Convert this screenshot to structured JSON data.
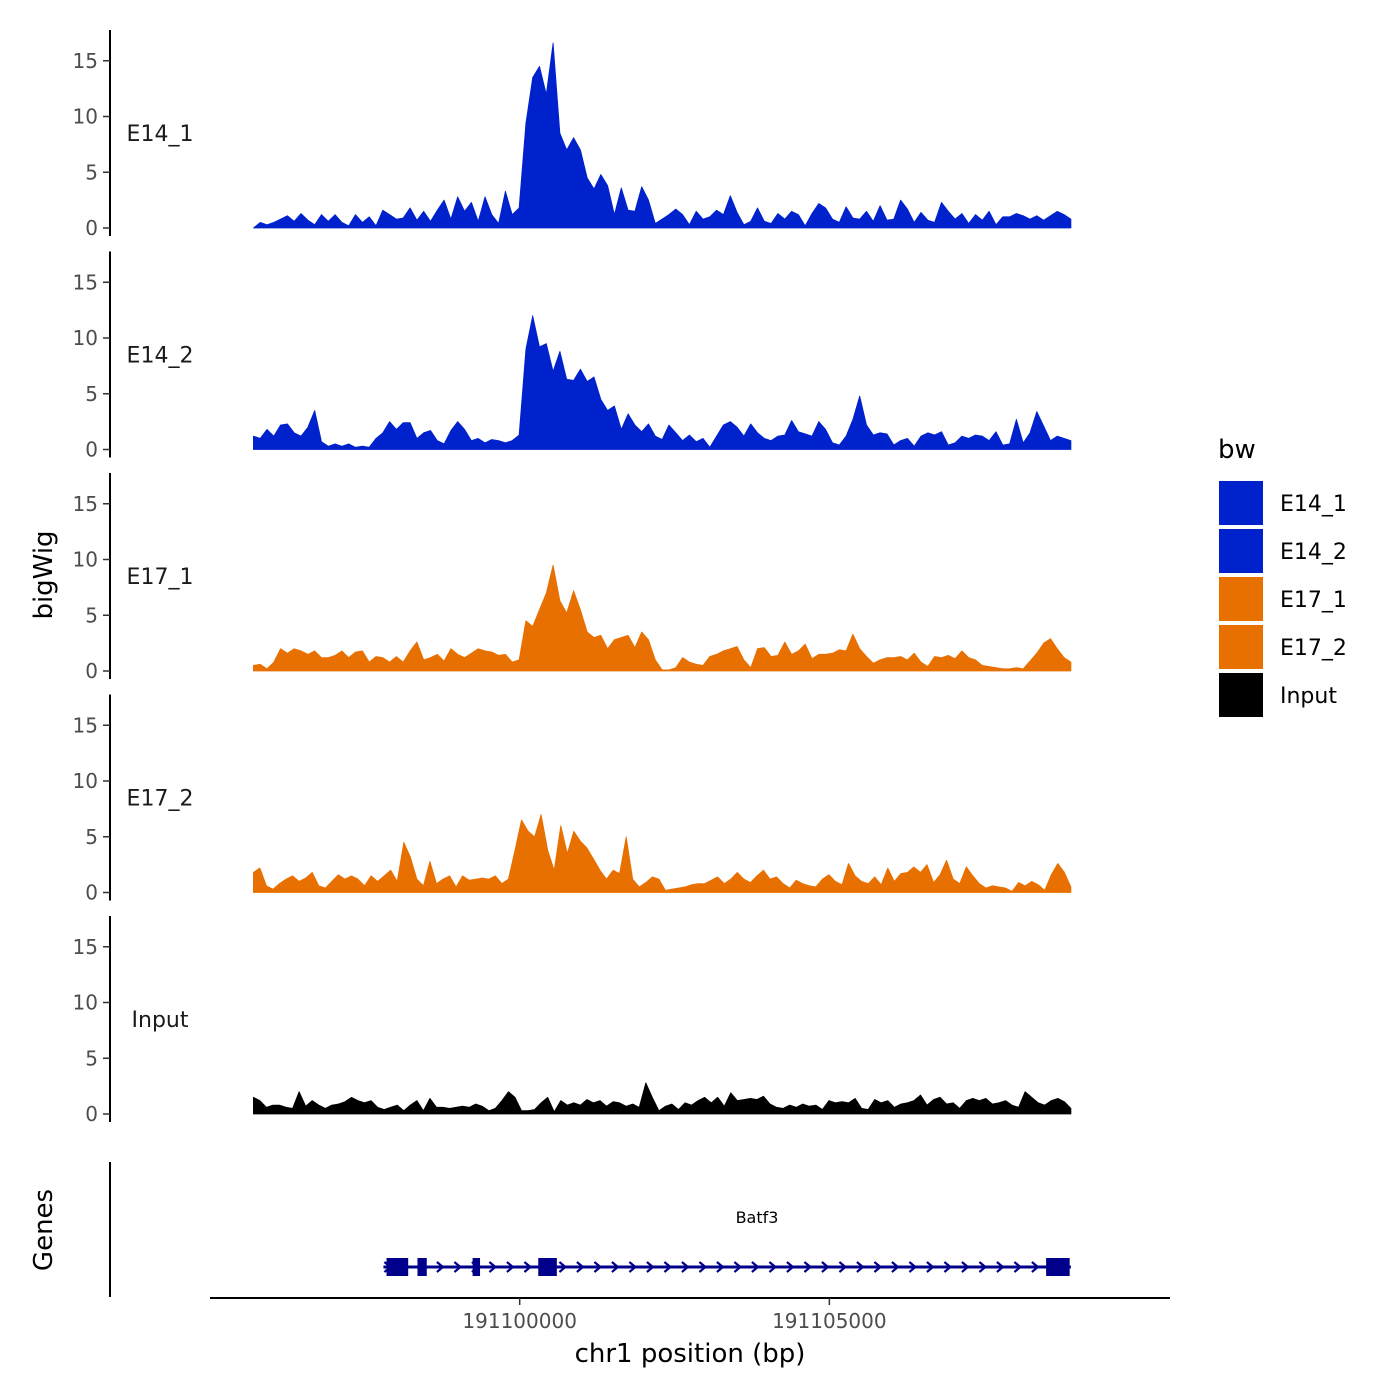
{
  "chart_data": {
    "type": "area",
    "title": "",
    "xlabel": "chr1 position (bp)",
    "ylabel": "bigWig",
    "xlim": [
      191095000,
      191110500
    ],
    "ylim": [
      0,
      17
    ],
    "x_ticks": [
      191100000,
      191105000
    ],
    "x_tick_labels": [
      "191100000",
      "191105000"
    ],
    "y_ticks": [
      0,
      5,
      10,
      15
    ],
    "y_tick_labels": [
      "0",
      "5",
      "10",
      "15"
    ],
    "signal_range": [
      191095700,
      191108900
    ],
    "legend": {
      "title": "bw",
      "placement": "right",
      "entries": [
        {
          "label": "E14_1",
          "color": "#0022cc"
        },
        {
          "label": "E14_2",
          "color": "#0022cc"
        },
        {
          "label": "E17_1",
          "color": "#e87000"
        },
        {
          "label": "E17_2",
          "color": "#e87000"
        },
        {
          "label": "Input",
          "color": "#000000"
        }
      ]
    },
    "series": [
      {
        "name": "E14_1",
        "color": "#0022cc",
        "values": [
          0,
          0.5,
          0.3,
          0.5,
          0.8,
          1.1,
          0.6,
          1.3,
          0.7,
          0.3,
          1.2,
          0.6,
          1.2,
          0.5,
          0.2,
          1.2,
          0.5,
          1.0,
          0.2,
          1.6,
          1.2,
          0.8,
          0.9,
          1.8,
          0.7,
          1.5,
          0.6,
          1.6,
          2.5,
          0.8,
          2.8,
          1.5,
          2.3,
          0.6,
          2.8,
          1.2,
          0.4,
          3.3,
          1.2,
          1.8,
          9.4,
          13.5,
          14.5,
          12.0,
          16.6,
          8.5,
          7.0,
          8.1,
          7.0,
          4.5,
          3.5,
          4.8,
          3.8,
          1.2,
          3.6,
          1.6,
          1.5,
          3.7,
          2.5,
          0.4,
          0.8,
          1.2,
          1.7,
          1.2,
          0.3,
          1.5,
          0.8,
          1.0,
          1.6,
          1.2,
          2.9,
          1.4,
          0.3,
          0.6,
          1.8,
          0.6,
          0.4,
          1.3,
          0.8,
          1.5,
          1.2,
          0.2,
          1.3,
          2.2,
          1.8,
          0.8,
          0.5,
          1.9,
          0.9,
          0.8,
          1.5,
          0.6,
          2.0,
          0.7,
          0.8,
          2.5,
          1.7,
          0.5,
          1.4,
          0.7,
          0.5,
          2.3,
          1.5,
          0.8,
          1.3,
          0.4,
          1.2,
          0.7,
          1.5,
          0.3,
          1.0,
          1.0,
          1.3,
          1.1,
          0.8,
          1.1,
          0.7,
          1.1,
          1.5,
          1.2,
          0.8
        ]
      },
      {
        "name": "E14_2",
        "color": "#0022cc",
        "values": [
          1.2,
          1.0,
          1.8,
          1.2,
          2.2,
          2.3,
          1.5,
          1.2,
          2.0,
          3.5,
          0.7,
          0.3,
          0.5,
          0.3,
          0.5,
          0.2,
          0.3,
          0.2,
          1.0,
          1.5,
          2.5,
          1.8,
          2.4,
          2.4,
          1.0,
          1.5,
          1.7,
          0.8,
          0.5,
          1.7,
          2.5,
          1.8,
          0.8,
          1.0,
          0.6,
          0.9,
          0.8,
          0.6,
          0.8,
          1.3,
          9.0,
          12.0,
          9.2,
          9.5,
          7.0,
          8.8,
          6.3,
          6.2,
          7.2,
          6.1,
          6.5,
          4.5,
          3.5,
          3.9,
          1.8,
          3.2,
          2.2,
          1.6,
          2.3,
          1.2,
          0.9,
          2.2,
          1.5,
          0.8,
          1.3,
          0.7,
          1.0,
          0.2,
          1.2,
          2.2,
          2.5,
          2.0,
          1.2,
          2.3,
          1.5,
          1.0,
          0.8,
          1.2,
          1.3,
          2.6,
          1.6,
          1.4,
          1.2,
          2.5,
          1.8,
          0.6,
          0.4,
          1.2,
          2.7,
          4.8,
          2.2,
          1.3,
          1.5,
          1.4,
          0.4,
          0.8,
          1.0,
          0.3,
          1.2,
          1.5,
          1.3,
          1.6,
          0.4,
          0.6,
          1.2,
          1.0,
          1.3,
          1.2,
          0.8,
          1.6,
          0.4,
          0.5,
          2.7,
          0.6,
          1.5,
          3.4,
          2.1,
          0.8,
          1.2,
          1.0,
          0.8
        ]
      },
      {
        "name": "E17_1",
        "color": "#e87000",
        "values": [
          0.5,
          0.6,
          0.2,
          0.8,
          2.0,
          1.6,
          2.0,
          1.8,
          1.5,
          1.8,
          1.2,
          1.2,
          1.4,
          1.8,
          1.2,
          1.7,
          1.8,
          0.8,
          1.3,
          1.2,
          0.8,
          1.3,
          0.8,
          1.8,
          2.6,
          1.0,
          1.2,
          1.5,
          0.9,
          2.0,
          1.5,
          1.2,
          1.6,
          2.0,
          1.8,
          1.7,
          1.4,
          1.5,
          0.8,
          1.0,
          4.5,
          4.0,
          5.5,
          7.0,
          9.5,
          6.3,
          5.2,
          7.2,
          5.5,
          3.5,
          3.0,
          3.2,
          2.0,
          2.8,
          3.0,
          3.2,
          2.1,
          3.5,
          2.8,
          1.0,
          0.1,
          0.1,
          0.3,
          1.2,
          0.8,
          0.6,
          0.5,
          1.3,
          1.5,
          1.8,
          2.0,
          2.2,
          1.0,
          0.3,
          2.0,
          2.1,
          1.3,
          1.4,
          2.6,
          1.5,
          1.8,
          2.4,
          1.1,
          1.5,
          1.5,
          1.6,
          1.9,
          1.8,
          3.3,
          2.0,
          1.3,
          0.7,
          1.0,
          1.2,
          1.2,
          1.3,
          1.0,
          1.6,
          0.8,
          0.4,
          1.3,
          1.2,
          1.4,
          1.1,
          1.8,
          1.2,
          1.0,
          0.5,
          0.4,
          0.3,
          0.2,
          0.2,
          0.3,
          0.2,
          0.9,
          1.6,
          2.5,
          2.9,
          2.0,
          1.2,
          0.8
        ]
      },
      {
        "name": "E17_2",
        "color": "#e87000",
        "values": [
          1.8,
          2.2,
          0.6,
          0.3,
          0.8,
          1.2,
          1.5,
          1.0,
          1.3,
          1.8,
          0.6,
          0.4,
          1.0,
          1.6,
          1.2,
          1.5,
          1.2,
          0.6,
          1.5,
          1.0,
          1.5,
          2.0,
          1.0,
          4.5,
          3.2,
          1.2,
          0.6,
          2.8,
          0.8,
          1.2,
          1.5,
          0.5,
          1.5,
          1.1,
          1.2,
          1.3,
          1.2,
          1.5,
          0.8,
          1.2,
          3.8,
          6.5,
          5.5,
          5.0,
          7.0,
          3.8,
          2.0,
          6.0,
          3.5,
          5.5,
          4.6,
          4.0,
          3.0,
          2.0,
          1.2,
          2.0,
          1.7,
          5.0,
          1.2,
          0.5,
          0.9,
          1.4,
          1.2,
          0.2,
          0.3,
          0.4,
          0.5,
          0.7,
          0.8,
          0.8,
          1.1,
          1.4,
          0.8,
          1.2,
          1.8,
          1.2,
          0.9,
          1.5,
          2.0,
          1.2,
          1.4,
          0.8,
          0.4,
          1.1,
          0.8,
          0.6,
          0.5,
          1.2,
          1.6,
          1.0,
          0.7,
          2.6,
          1.5,
          1.0,
          0.8,
          1.4,
          0.7,
          2.2,
          1.0,
          1.7,
          1.8,
          2.3,
          1.8,
          2.5,
          0.9,
          1.6,
          2.9,
          1.2,
          0.8,
          2.3,
          1.5,
          0.8,
          0.4,
          0.6,
          0.5,
          0.4,
          0.1,
          0.9,
          0.6,
          1.0,
          0.7,
          0.2,
          1.6,
          2.6,
          1.8,
          0.5
        ]
      },
      {
        "name": "Input",
        "color": "#000000",
        "values": [
          1.5,
          1.2,
          0.6,
          0.8,
          0.8,
          0.6,
          0.5,
          2.0,
          0.7,
          1.2,
          0.8,
          0.5,
          0.8,
          0.9,
          1.1,
          1.5,
          1.2,
          1.0,
          1.2,
          0.6,
          0.4,
          0.6,
          0.8,
          0.3,
          0.8,
          1.2,
          0.3,
          1.4,
          0.6,
          0.6,
          0.5,
          0.6,
          0.7,
          0.6,
          0.9,
          0.7,
          0.3,
          0.5,
          1.2,
          2.0,
          1.5,
          0.3,
          0.3,
          0.4,
          1.0,
          1.5,
          0.2,
          1.2,
          0.8,
          1.0,
          0.8,
          1.3,
          1.0,
          1.2,
          0.7,
          1.1,
          1.0,
          0.7,
          0.9,
          0.6,
          2.8,
          1.5,
          0.3,
          0.7,
          0.9,
          0.4,
          1.0,
          0.8,
          1.2,
          1.5,
          1.0,
          1.5,
          0.7,
          1.9,
          1.2,
          1.3,
          1.4,
          1.3,
          1.6,
          0.9,
          0.6,
          0.5,
          0.8,
          0.6,
          0.9,
          0.7,
          0.8,
          0.4,
          1.2,
          1.0,
          1.1,
          1.0,
          1.4,
          0.5,
          0.4,
          1.3,
          1.0,
          1.2,
          0.6,
          0.9,
          1.0,
          1.2,
          1.7,
          0.8,
          1.3,
          1.5,
          0.9,
          1.0,
          0.5,
          1.2,
          1.4,
          1.2,
          1.4,
          0.9,
          1.0,
          1.2,
          0.8,
          0.6,
          2.0,
          1.5,
          1.0,
          0.8,
          1.2,
          1.4,
          1.1,
          0.5
        ]
      }
    ],
    "genes_track": {
      "ylabel": "Genes",
      "gene": {
        "name": "Batf3",
        "color": "#00008b",
        "start": 191097800,
        "end": 191108900,
        "strand": "+",
        "exons": [
          [
            191097850,
            191098200
          ],
          [
            191098350,
            191098500
          ],
          [
            191099240,
            191099360
          ],
          [
            191100300,
            191100600
          ],
          [
            191108500,
            191108880
          ]
        ]
      }
    }
  }
}
